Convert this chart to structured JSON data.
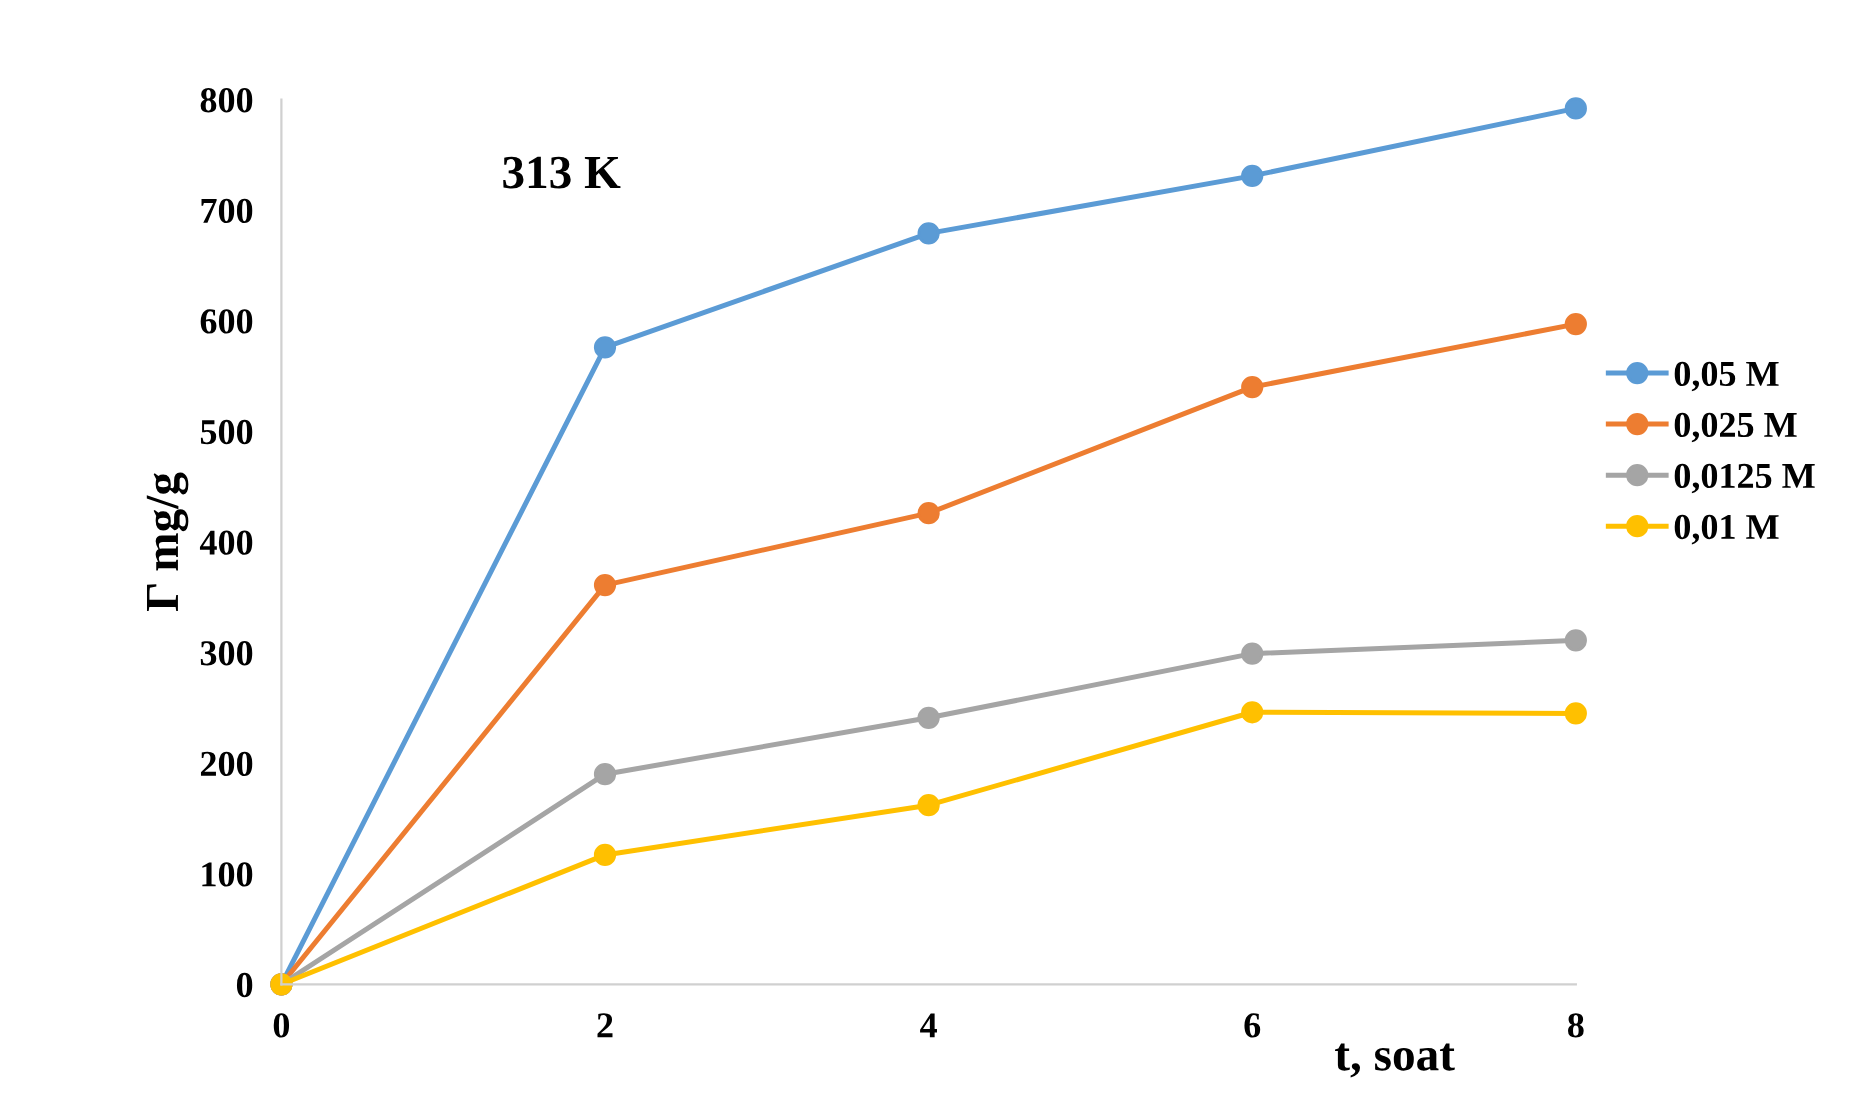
{
  "chart_data": {
    "type": "line",
    "xlabel": "t, soat",
    "ylabel": "Γ mg/g",
    "annotations": [
      "313 K"
    ],
    "x": [
      0,
      2,
      4,
      6,
      8
    ],
    "series": [
      {
        "name": "0,05 M",
        "color": "#5b9bd5",
        "values": [
          0,
          576,
          679,
          731,
          792
        ]
      },
      {
        "name": "0,025 M",
        "color": "#ed7d31",
        "values": [
          0,
          361,
          426,
          540,
          597
        ]
      },
      {
        "name": "0,0125 M",
        "color": "#a5a5a5",
        "values": [
          0,
          190,
          241,
          299,
          311
        ]
      },
      {
        "name": "0,01 M",
        "color": "#ffc000",
        "values": [
          0,
          117,
          162,
          246,
          245
        ]
      }
    ],
    "xlim": [
      0,
      8
    ],
    "xticks": [
      0,
      2,
      4,
      6,
      8
    ],
    "ylim": [
      0,
      800
    ],
    "yticks": [
      0,
      100,
      200,
      300,
      400,
      500,
      600,
      700,
      800
    ],
    "grid": false,
    "legend": "right",
    "marker": "circle",
    "line_style": "solid"
  }
}
